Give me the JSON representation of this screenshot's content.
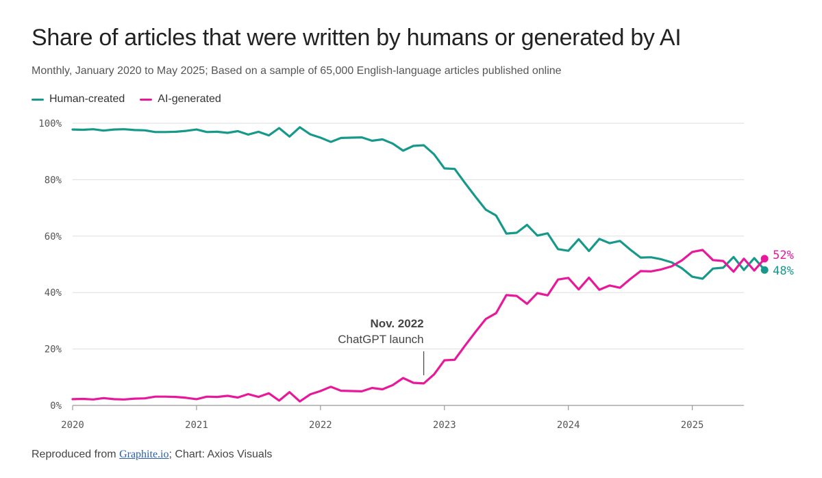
{
  "title": "Share of articles that were written by humans or generated by AI",
  "subtitle": "Monthly, January 2020 to May 2025; Based on a sample of 65,000 English-language articles published online",
  "source": {
    "prefix": "Reproduced from ",
    "link_text": "Graphite.io",
    "suffix": "; Chart: Axios Visuals"
  },
  "colors": {
    "human": "#16998a",
    "ai": "#e8189b",
    "grid": "#dddddd",
    "axis": "#999999"
  },
  "chart_data": {
    "type": "line",
    "x_start": "2020-01",
    "x_end": "2025-05",
    "x_ticks": [
      {
        "date": "2020-01",
        "label": "2020"
      },
      {
        "date": "2021-01",
        "label": "2021"
      },
      {
        "date": "2022-01",
        "label": "2022"
      },
      {
        "date": "2023-01",
        "label": "2023"
      },
      {
        "date": "2024-01",
        "label": "2024"
      },
      {
        "date": "2025-01",
        "label": "2025"
      }
    ],
    "y_ticks": [
      {
        "value": 0,
        "label": "0%"
      },
      {
        "value": 20,
        "label": "20%"
      },
      {
        "value": 40,
        "label": "40%"
      },
      {
        "value": 60,
        "label": "60%"
      },
      {
        "value": 80,
        "label": "80%"
      },
      {
        "value": 100,
        "label": "100%"
      }
    ],
    "ylim": [
      0,
      100
    ],
    "grid": true,
    "legend": "top-left",
    "series": [
      {
        "name": "Human-created",
        "color": "#16998a",
        "end_label": "48%",
        "values": [
          97.8,
          97.7,
          97.9,
          97.4,
          97.8,
          97.9,
          97.6,
          97.5,
          96.9,
          96.9,
          97.0,
          97.3,
          97.8,
          96.9,
          97.0,
          96.6,
          97.2,
          96.0,
          97.0,
          95.7,
          98.3,
          95.3,
          98.6,
          96.1,
          94.9,
          93.4,
          94.8,
          94.9,
          95.0,
          93.8,
          94.3,
          92.8,
          90.3,
          92.0,
          92.2,
          89.0,
          84.0,
          83.8,
          78.8,
          74.0,
          69.4,
          67.3,
          60.9,
          61.2,
          64.0,
          60.2,
          61.0,
          55.4,
          54.8,
          58.9,
          54.7,
          59.0,
          57.5,
          58.3,
          55.2,
          52.4,
          52.5,
          51.8,
          50.7,
          48.6,
          45.6,
          44.9,
          48.5,
          48.8,
          52.6,
          48.0,
          52.2,
          48.0
        ]
      },
      {
        "name": "AI-generated",
        "color": "#e8189b",
        "end_label": "52%",
        "values": [
          2.2,
          2.3,
          2.1,
          2.6,
          2.2,
          2.1,
          2.4,
          2.5,
          3.1,
          3.1,
          3.0,
          2.7,
          2.2,
          3.1,
          3.0,
          3.4,
          2.8,
          4.0,
          3.0,
          4.3,
          1.7,
          4.7,
          1.4,
          3.9,
          5.1,
          6.6,
          5.2,
          5.1,
          5.0,
          6.2,
          5.7,
          7.2,
          9.7,
          8.0,
          7.8,
          11.0,
          16.0,
          16.2,
          21.2,
          26.0,
          30.6,
          32.7,
          39.1,
          38.8,
          36.0,
          39.8,
          39.0,
          44.6,
          45.2,
          41.1,
          45.3,
          41.0,
          42.5,
          41.7,
          44.8,
          47.6,
          47.5,
          48.2,
          49.3,
          51.4,
          54.4,
          55.1,
          51.5,
          51.2,
          47.4,
          52.0,
          47.8,
          52.0
        ]
      }
    ],
    "annotation": {
      "date": "2022-11",
      "title": "Nov. 2022",
      "text": "ChatGPT launch"
    }
  }
}
